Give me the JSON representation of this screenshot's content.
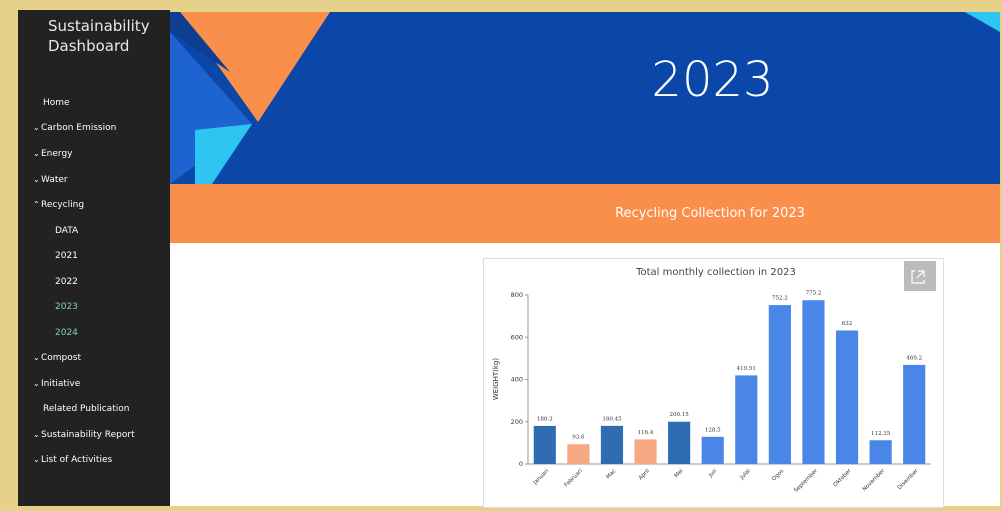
{
  "sidebar": {
    "title": "Sustainability Dashboard",
    "menu": [
      "Home",
      "Carbon Emission",
      "Energy",
      "Water",
      "Recycling",
      "DATA",
      "2021",
      "2022",
      "2023",
      "2024",
      "Compost",
      "Initiative",
      "Related Publication",
      "Sustainability Report",
      "List of Activities"
    ]
  },
  "banner": {
    "title": "2023"
  },
  "section_title": "Recycling Collection for 2023",
  "chart_data": {
    "type": "bar",
    "title": "Total monthly collection in 2023",
    "ylabel": "WEIGHT(kg)",
    "categories": [
      "Januari",
      "Februari",
      "Mac",
      "April",
      "Mei",
      "Jun",
      "Julai",
      "Ogos",
      "September",
      "Oktober",
      "November",
      "Disember"
    ],
    "values": [
      180.3,
      93.6,
      180.45,
      116.4,
      200.15,
      128.5,
      419.51,
      752.2,
      775.2,
      632,
      112.35,
      469.2
    ],
    "colors": [
      "#2f6db3",
      "#f6a982",
      "#2f6db3",
      "#f6a982",
      "#2f6db3",
      "#4a86e8",
      "#4a86e8",
      "#4a86e8",
      "#4a86e8",
      "#4a86e8",
      "#4a86e8",
      "#4a86e8"
    ],
    "ylim": [
      0,
      800
    ],
    "yticks": [
      0,
      200,
      400,
      600,
      800
    ],
    "grid": false
  }
}
